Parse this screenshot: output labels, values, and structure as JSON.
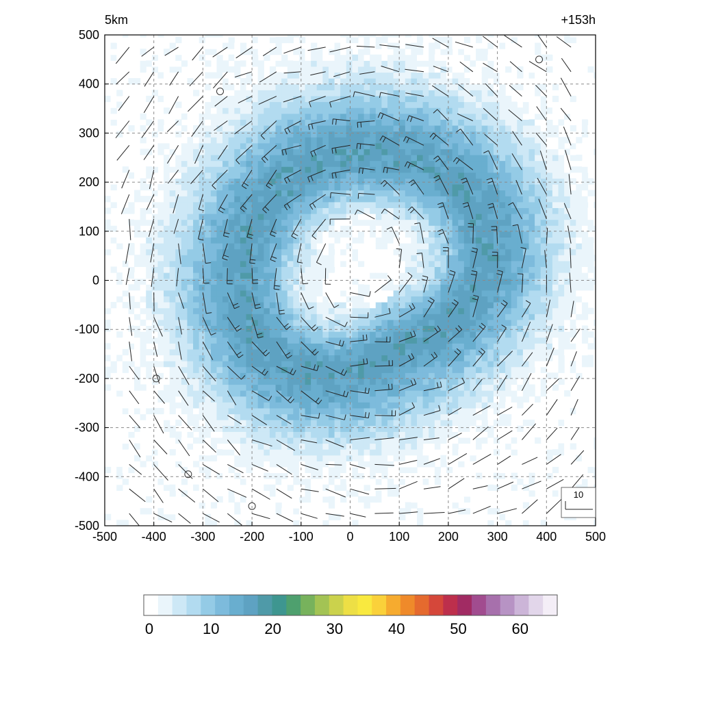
{
  "chart_data": {
    "type": "heatmap",
    "title_left": "5km",
    "title_right": "+153h",
    "x_range": [
      -500,
      500
    ],
    "y_range": [
      -500,
      500
    ],
    "x_ticks": [
      -500,
      -400,
      -300,
      -200,
      -100,
      0,
      100,
      200,
      300,
      400,
      500
    ],
    "y_ticks": [
      -500,
      -400,
      -300,
      -200,
      -100,
      0,
      100,
      200,
      300,
      400,
      500
    ],
    "x_tick_labels": [
      "-500",
      "-400",
      "-300",
      "-200",
      "-100",
      "0",
      "100",
      "200",
      "300",
      "400",
      "500"
    ],
    "y_tick_labels": [
      "-500",
      "-400",
      "-300",
      "-200",
      "-100",
      "0",
      "100",
      "200",
      "300",
      "400",
      "500"
    ],
    "grid": true,
    "field": {
      "pattern": "annular ring of wind speed centered near (20, 40)",
      "ring_radius_peak": 230,
      "ring_peak_value": 17,
      "eye_value": 2,
      "outer_value": 1
    },
    "wind_barbs": {
      "spacing": 50,
      "rotation": "counter-clockwise",
      "calm_markers": [
        [
          -265,
          385
        ],
        [
          385,
          450
        ],
        [
          -395,
          -200
        ],
        [
          -330,
          -395
        ],
        [
          -200,
          -460
        ]
      ]
    },
    "reference_vector_label": "10",
    "colorbar": {
      "min": 0,
      "max": 65,
      "tick_labels": [
        "0",
        "10",
        "20",
        "30",
        "40",
        "50",
        "60"
      ],
      "tick_values": [
        0,
        10,
        20,
        30,
        40,
        50,
        60
      ],
      "stops": [
        "#ffffff",
        "#eaf5fb",
        "#cde8f6",
        "#b2dbf0",
        "#94cbe6",
        "#7dbbdc",
        "#69aecf",
        "#5ea2c2",
        "#4f9aa8",
        "#3e9690",
        "#4ea06e",
        "#77b25c",
        "#a3c354",
        "#cbd24c",
        "#eddf45",
        "#f9e93f",
        "#fad13a",
        "#f6ab2f",
        "#ef8a2a",
        "#e56a2e",
        "#d5473a",
        "#bd2f4c",
        "#a12b63",
        "#a14c8f",
        "#a770ac",
        "#b793c4",
        "#ccb5d8",
        "#e2d6ea",
        "#f4eef7"
      ]
    }
  }
}
